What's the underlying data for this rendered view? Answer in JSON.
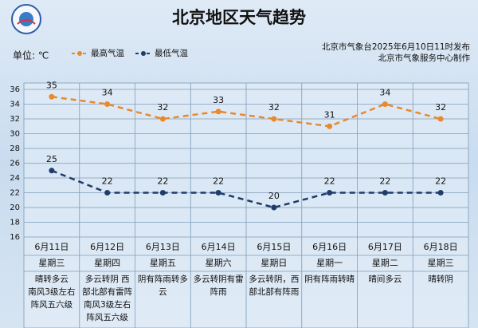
{
  "chart_data": {
    "type": "line",
    "title": "北京地区天气趋势",
    "unit_label": "单位: ℃",
    "source": [
      "北京市气象台2025年6月10日11时发布",
      "北京市气象服务中心制作"
    ],
    "categories": [
      "6月11日",
      "6月12日",
      "6月13日",
      "6月14日",
      "6月15日",
      "6月16日",
      "6月17日",
      "6月18日"
    ],
    "weekdays": [
      "星期三",
      "星期四",
      "星期五",
      "星期六",
      "星期日",
      "星期一",
      "星期二",
      "星期三"
    ],
    "descriptions": [
      [
        "晴转多云",
        "南风3级左右",
        "阵风五六级"
      ],
      [
        "多云转阴 西",
        "部北部有雷阵",
        "南风3级左右",
        "阵风五六级"
      ],
      [
        "阴有阵雨转多",
        "云"
      ],
      [
        "多云转阴有雷",
        "阵雨"
      ],
      [
        "多云转阴，西",
        "部北部有阵雨"
      ],
      [
        "阴有阵雨转晴"
      ],
      [
        "晴间多云"
      ],
      [
        "晴转阴"
      ]
    ],
    "series": [
      {
        "name": "最高气温",
        "color": "#e8892c",
        "values": [
          35,
          34,
          32,
          33,
          32,
          31,
          34,
          32
        ]
      },
      {
        "name": "最低气温",
        "color": "#1f3c6b",
        "values": [
          25,
          22,
          22,
          22,
          20,
          22,
          22,
          22
        ]
      }
    ],
    "ylim": [
      16,
      36
    ],
    "yticks": [
      16,
      18,
      20,
      22,
      24,
      26,
      28,
      30,
      32,
      34,
      36
    ],
    "grid": true
  }
}
